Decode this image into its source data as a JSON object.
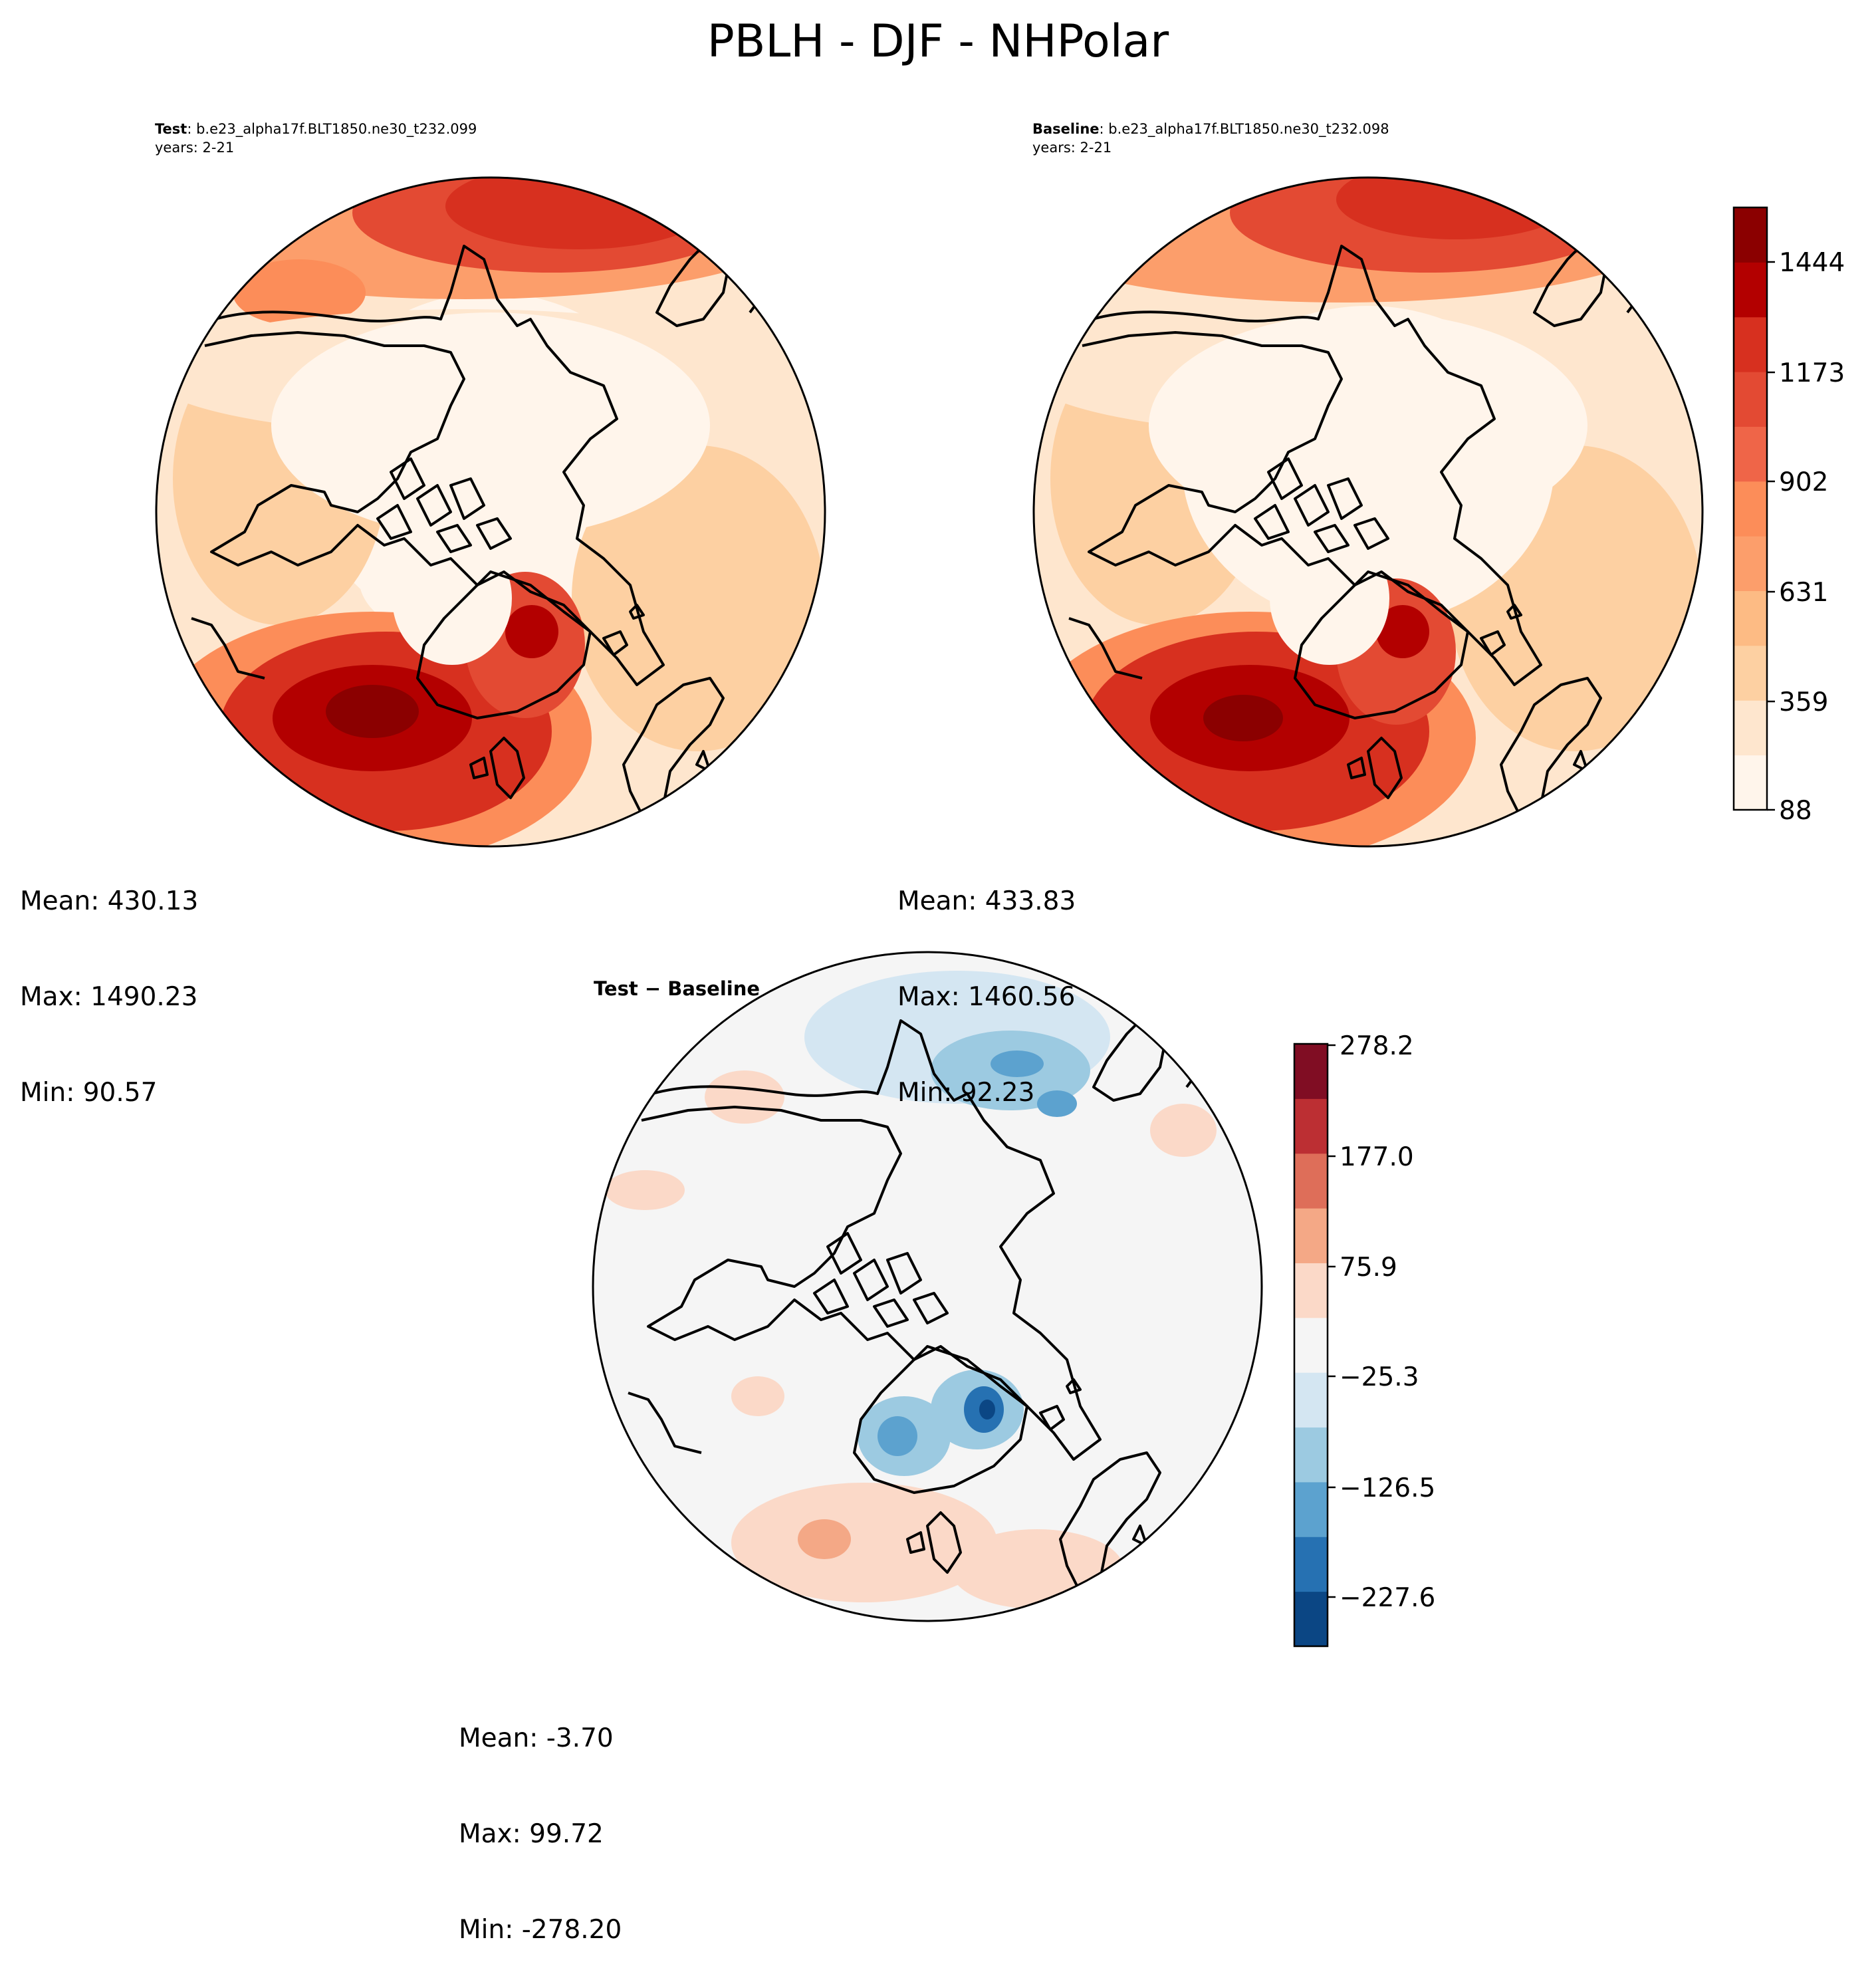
{
  "figure": {
    "title": "PBLH - DJF - NHPolar"
  },
  "panels": {
    "test": {
      "label": "Test",
      "case": ": b.e23_alpha17f.BLT1850.ne30_t232.099",
      "years": "years: 2-21",
      "mean": "Mean: 430.13",
      "max": "Max: 1490.23",
      "min": "Min: 90.57"
    },
    "baseline": {
      "label": "Baseline",
      "case": ": b.e23_alpha17f.BLT1850.ne30_t232.098",
      "years": "years: 2-21",
      "mean": "Mean: 433.83",
      "max": "Max: 1460.56",
      "min": "Min: 92.23"
    },
    "difference": {
      "title_left": "Test",
      "title_sep": " − ",
      "title_right": "Baseline",
      "mean": "Mean: -3.70",
      "max": "Max: 99.72",
      "min": "Min: -278.20"
    }
  },
  "colorbars": {
    "main": {
      "ticks": [
        "1444",
        "1173",
        "902",
        "631",
        "359",
        "88"
      ],
      "colors": [
        "#fff5eb",
        "#fee6ce",
        "#fdd0a2",
        "#fdbb84",
        "#fc9e6b",
        "#fc8d59",
        "#ef6548",
        "#e34a33",
        "#d7301f",
        "#b30000",
        "#8b0000"
      ]
    },
    "diff": {
      "ticks": [
        "278.2",
        "177.0",
        "75.9",
        "−25.3",
        "−126.5",
        "−227.6"
      ],
      "colors": [
        "#0b4684",
        "#2671b2",
        "#5ca2cf",
        "#9ccae1",
        "#d4e6f2",
        "#f5f5f5",
        "#fbd9c8",
        "#f4a886",
        "#de6e59",
        "#bc2f33",
        "#800d23"
      ]
    }
  },
  "map_colors": {
    "land_outline": "#000000",
    "rim": "#000000"
  }
}
